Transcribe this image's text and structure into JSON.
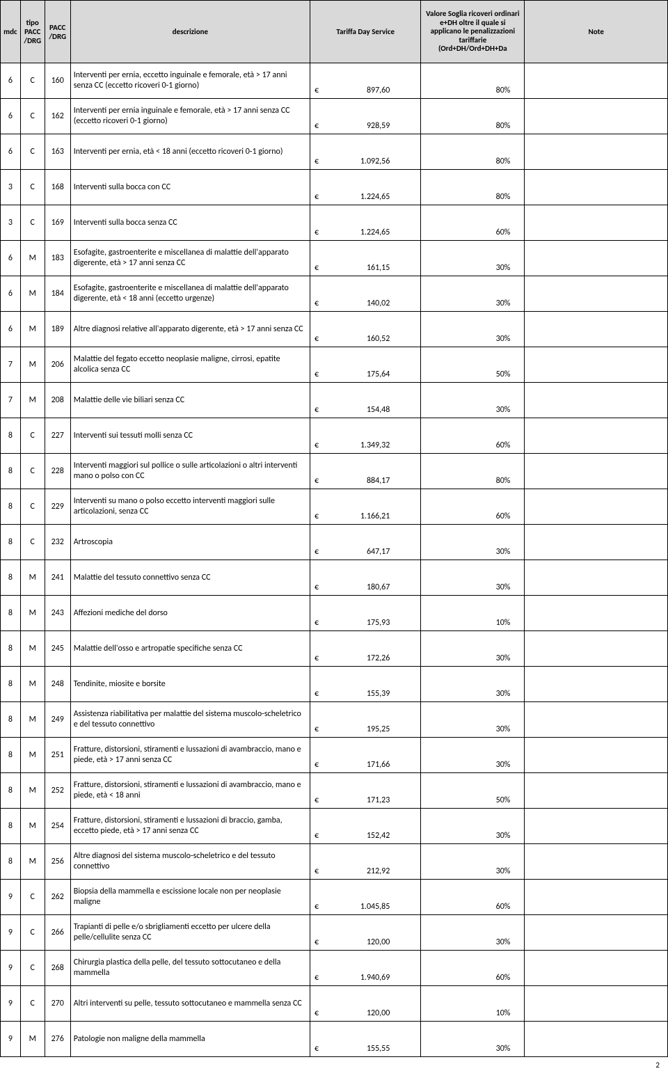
{
  "headers": {
    "mdc": "mdc",
    "tipo": "tipo PACC /DRG",
    "pacc": "PACC /DRG",
    "desc": "descrizione",
    "tariffa": "Tariffa Day Service",
    "soglia": "Valore Soglia ricoveri ordinari e+DH oltre il quale si applicano le penalizzazioni tariffarie (Ord+DH/Ord+DH+Da",
    "note": "Note"
  },
  "rows": [
    {
      "mdc": "6",
      "tipo": "C",
      "pacc": "160",
      "desc": " Interventi per ernia, eccetto inguinale e femorale, età > 17 anni senza CC (eccetto ricoveri 0-1 giorno)",
      "tariffa": "897,60",
      "soglia": "80%",
      "note": ""
    },
    {
      "mdc": "6",
      "tipo": "C",
      "pacc": "162",
      "desc": " Interventi per ernia inguinale e femorale, età > 17 anni senza CC (eccetto ricoveri 0-1 giorno)",
      "tariffa": "928,59",
      "soglia": "80%",
      "note": ""
    },
    {
      "mdc": "6",
      "tipo": "C",
      "pacc": "163",
      "desc": " Interventi per ernia, età < 18 anni (eccetto ricoveri 0-1 giorno)",
      "tariffa": "1.092,56",
      "soglia": "80%",
      "note": ""
    },
    {
      "mdc": "3",
      "tipo": "C",
      "pacc": "168",
      "desc": "Interventi sulla bocca con CC",
      "tariffa": "1.224,65",
      "soglia": "80%",
      "note": ""
    },
    {
      "mdc": "3",
      "tipo": "C",
      "pacc": "169",
      "desc": "Interventi sulla bocca senza CC",
      "tariffa": "1.224,65",
      "soglia": "60%",
      "note": ""
    },
    {
      "mdc": "6",
      "tipo": "M",
      "pacc": "183",
      "desc": " Esofagite, gastroenterite e miscellanea di malattie dell'apparato digerente, età > 17 anni senza CC",
      "tariffa": "161,15",
      "soglia": "30%",
      "note": ""
    },
    {
      "mdc": "6",
      "tipo": "M",
      "pacc": "184",
      "desc": " Esofagite, gastroenterite e miscellanea di malattie dell'apparato digerente, età < 18 anni (eccetto urgenze)",
      "tariffa": "140,02",
      "soglia": "30%",
      "note": ""
    },
    {
      "mdc": "6",
      "tipo": "M",
      "pacc": "189",
      "desc": " Altre diagnosi relative all'apparato digerente, età > 17 anni senza CC",
      "tariffa": "160,52",
      "soglia": "30%",
      "note": ""
    },
    {
      "mdc": "7",
      "tipo": "M",
      "pacc": "206",
      "desc": " Malattie del fegato eccetto neoplasie maligne, cirrosi, epatite alcolica senza CC",
      "tariffa": "175,64",
      "soglia": "50%",
      "note": ""
    },
    {
      "mdc": "7",
      "tipo": "M",
      "pacc": "208",
      "desc": "Malattie delle vie biliari senza CC",
      "tariffa": "154,48",
      "soglia": "30%",
      "note": ""
    },
    {
      "mdc": "8",
      "tipo": "C",
      "pacc": "227",
      "desc": "Interventi sui tessuti molli senza CC",
      "tariffa": "1.349,32",
      "soglia": "60%",
      "note": ""
    },
    {
      "mdc": "8",
      "tipo": "C",
      "pacc": "228",
      "desc": " Interventi maggiori sul pollice o sulle articolazioni o altri interventi mano o polso con CC",
      "tariffa": "884,17",
      "soglia": "80%",
      "note": ""
    },
    {
      "mdc": "8",
      "tipo": "C",
      "pacc": "229",
      "desc": " Interventi su mano o polso eccetto interventi maggiori sulle articolazioni, senza CC",
      "tariffa": "1.166,21",
      "soglia": "60%",
      "note": ""
    },
    {
      "mdc": "8",
      "tipo": "C",
      "pacc": "232",
      "desc": "Artroscopia",
      "tariffa": "647,17",
      "soglia": "30%",
      "note": ""
    },
    {
      "mdc": "8",
      "tipo": "M",
      "pacc": "241",
      "desc": "Malattie del tessuto connettivo senza CC",
      "tariffa": "180,67",
      "soglia": "30%",
      "note": ""
    },
    {
      "mdc": "8",
      "tipo": "M",
      "pacc": "243",
      "desc": "Affezioni mediche del dorso",
      "tariffa": "175,93",
      "soglia": "10%",
      "note": ""
    },
    {
      "mdc": "8",
      "tipo": "M",
      "pacc": "245",
      "desc": "Malattie dell'osso e artropatie specifiche senza CC",
      "tariffa": "172,26",
      "soglia": "30%",
      "note": ""
    },
    {
      "mdc": "8",
      "tipo": "M",
      "pacc": "248",
      "desc": "Tendinite, miosite e borsite",
      "tariffa": "155,39",
      "soglia": "30%",
      "note": ""
    },
    {
      "mdc": "8",
      "tipo": "M",
      "pacc": "249",
      "desc": " Assistenza riabilitativa per malattie del sistema muscolo-scheletrico e del tessuto connettivo",
      "tariffa": "195,25",
      "soglia": "30%",
      "note": ""
    },
    {
      "mdc": "8",
      "tipo": "M",
      "pacc": "251",
      "desc": " Fratture, distorsioni, stiramenti e lussazioni di avambraccio, mano e piede, età > 17 anni senza CC",
      "tariffa": "171,66",
      "soglia": "30%",
      "note": ""
    },
    {
      "mdc": "8",
      "tipo": "M",
      "pacc": "252",
      "desc": " Fratture, distorsioni, stiramenti e lussazioni di avambraccio, mano e piede, età < 18 anni",
      "tariffa": "171,23",
      "soglia": "50%",
      "note": ""
    },
    {
      "mdc": "8",
      "tipo": "M",
      "pacc": "254",
      "desc": " Fratture, distorsioni, stiramenti e lussazioni di braccio, gamba, eccetto piede, età > 17 anni senza CC",
      "tariffa": "152,42",
      "soglia": "30%",
      "note": ""
    },
    {
      "mdc": "8",
      "tipo": "M",
      "pacc": "256",
      "desc": " Altre diagnosi del sistema muscolo-scheletrico e del tessuto connettivo",
      "tariffa": "212,92",
      "soglia": "30%",
      "note": ""
    },
    {
      "mdc": "9",
      "tipo": "C",
      "pacc": "262",
      "desc": " Biopsia della mammella e escissione locale non per neoplasie maligne",
      "tariffa": "1.045,85",
      "soglia": "60%",
      "note": ""
    },
    {
      "mdc": "9",
      "tipo": "C",
      "pacc": "266",
      "desc": " Trapianti di pelle e/o sbrigliamenti eccetto per ulcere della pelle/cellulite senza CC",
      "tariffa": "120,00",
      "soglia": "30%",
      "note": ""
    },
    {
      "mdc": "9",
      "tipo": "C",
      "pacc": "268",
      "desc": " Chirurgia plastica della pelle, del tessuto sottocutaneo e della mammella",
      "tariffa": "1.940,69",
      "soglia": "60%",
      "note": ""
    },
    {
      "mdc": "9",
      "tipo": "C",
      "pacc": "270",
      "desc": " Altri interventi su pelle, tessuto sottocutaneo e mammella senza CC",
      "tariffa": "120,00",
      "soglia": "10%",
      "note": ""
    },
    {
      "mdc": "9",
      "tipo": "M",
      "pacc": "276",
      "desc": "Patologie non maligne della mammella",
      "tariffa": "155,55",
      "soglia": "30%",
      "note": ""
    }
  ],
  "currency": "€",
  "pageNumber": "2"
}
